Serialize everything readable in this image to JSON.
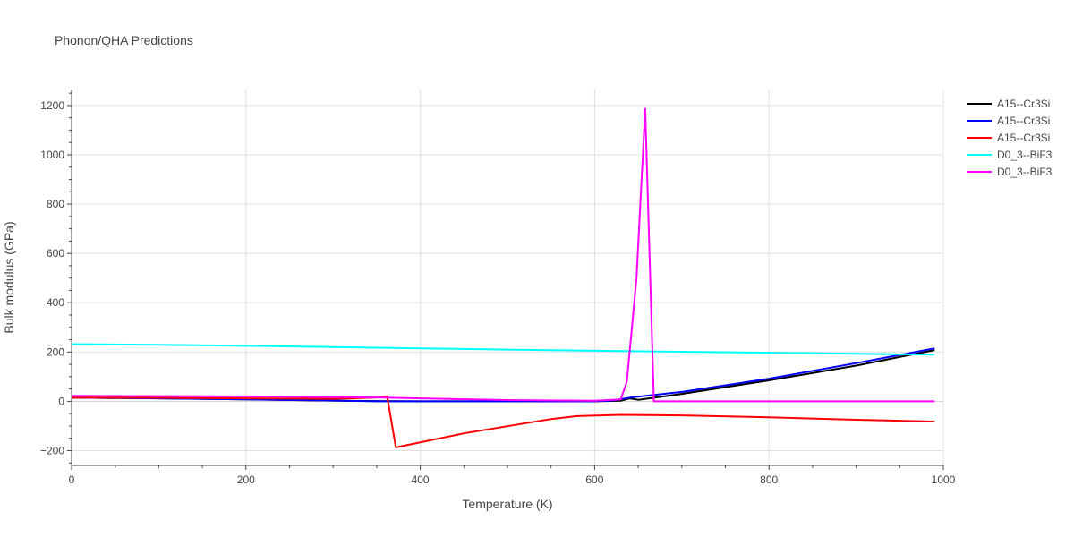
{
  "chart_data": {
    "type": "line",
    "title": "Phonon/QHA Predictions",
    "xlabel": "Temperature (K)",
    "ylabel": "Bulk modulus (GPa)",
    "xlim": [
      0,
      1000
    ],
    "ylim": [
      -260,
      1265
    ],
    "xticks": [
      0,
      200,
      400,
      600,
      800,
      1000
    ],
    "yticks": [
      -200,
      0,
      200,
      400,
      600,
      800,
      1000,
      1200
    ],
    "grid": true,
    "legend_position": "top-right",
    "series": [
      {
        "name": "A15--Cr3Si",
        "color": "#000000",
        "x": [
          0,
          100,
          200,
          300,
          350,
          400,
          500,
          600,
          630,
          640,
          650,
          700,
          800,
          900,
          990
        ],
        "y": [
          15,
          12,
          8,
          3,
          1,
          0,
          0,
          0,
          2,
          12,
          6,
          30,
          85,
          145,
          208
        ]
      },
      {
        "name": "A15--Cr3Si",
        "color": "#0000ff",
        "x": [
          0,
          100,
          200,
          300,
          350,
          400,
          500,
          600,
          620,
          640,
          700,
          800,
          900,
          990
        ],
        "y": [
          15,
          12,
          8,
          3,
          0,
          0,
          0,
          0,
          3,
          15,
          38,
          92,
          155,
          215
        ]
      },
      {
        "name": "A15--Cr3Si",
        "color": "#ff0000",
        "x": [
          0,
          100,
          200,
          300,
          350,
          362,
          372,
          450,
          550,
          580,
          630,
          700,
          800,
          900,
          990
        ],
        "y": [
          15,
          14,
          12,
          10,
          15,
          20,
          -187,
          -130,
          -72,
          -60,
          -55,
          -57,
          -65,
          -75,
          -82
        ]
      },
      {
        "name": "D0_3--BiF3",
        "color": "#00ffff",
        "x": [
          0,
          100,
          200,
          300,
          400,
          500,
          600,
          700,
          800,
          900,
          990
        ],
        "y": [
          232,
          229,
          225,
          220,
          215,
          210,
          205,
          201,
          197,
          193,
          189
        ]
      },
      {
        "name": "D0_3--BiF3",
        "color": "#ff00ff",
        "x": [
          0,
          100,
          200,
          300,
          360,
          400,
          500,
          600,
          630,
          637,
          648,
          658,
          668,
          680,
          800,
          990
        ],
        "y": [
          22,
          21,
          20,
          17,
          15,
          12,
          5,
          2,
          8,
          80,
          500,
          1187,
          0,
          0,
          0,
          0
        ]
      }
    ]
  }
}
